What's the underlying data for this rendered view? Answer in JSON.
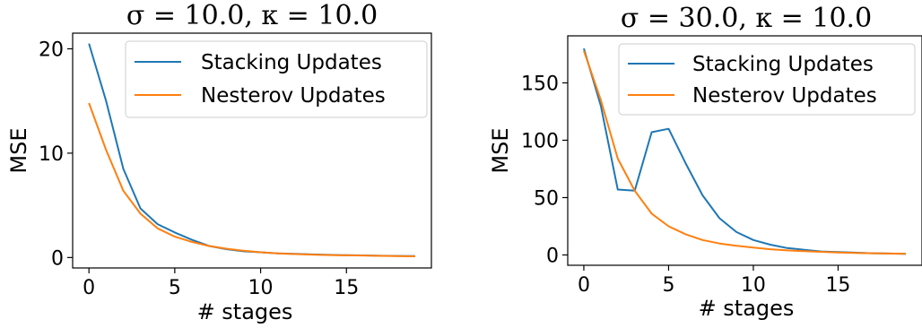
{
  "chart_data": [
    {
      "type": "line",
      "title": "σ = 10.0, κ = 10.0",
      "xlabel": "# stages",
      "ylabel": "MSE",
      "xlim": [
        -0.95,
        19.95
      ],
      "ylim": [
        -1.0,
        21.5
      ],
      "xticks": [
        0,
        5,
        10,
        15
      ],
      "yticks": [
        0,
        10,
        20
      ],
      "legend": "upper-right",
      "grid": false,
      "x": [
        0,
        1,
        2,
        3,
        4,
        5,
        6,
        7,
        8,
        9,
        10,
        11,
        12,
        13,
        14,
        15,
        16,
        17,
        18,
        19
      ],
      "series": [
        {
          "name": "Stacking Updates",
          "color": "#1f77b4",
          "values": [
            20.5,
            15.0,
            8.5,
            4.7,
            3.2,
            2.4,
            1.7,
            1.1,
            0.8,
            0.6,
            0.5,
            0.4,
            0.35,
            0.3,
            0.25,
            0.22,
            0.2,
            0.17,
            0.15,
            0.13
          ]
        },
        {
          "name": "Nesterov Updates",
          "color": "#ff7f0e",
          "values": [
            14.8,
            10.3,
            6.4,
            4.2,
            2.8,
            2.0,
            1.5,
            1.1,
            0.85,
            0.65,
            0.5,
            0.4,
            0.33,
            0.28,
            0.24,
            0.21,
            0.19,
            0.16,
            0.14,
            0.12
          ]
        }
      ]
    },
    {
      "type": "line",
      "title": "σ = 30.0, κ = 10.0",
      "xlabel": "# stages",
      "ylabel": "MSE",
      "xlim": [
        -0.95,
        19.95
      ],
      "ylim": [
        -9.0,
        191.0
      ],
      "xticks": [
        0,
        5,
        10,
        15
      ],
      "yticks": [
        0,
        50,
        100,
        150
      ],
      "legend": "upper-right",
      "grid": false,
      "x": [
        0,
        1,
        2,
        3,
        4,
        5,
        6,
        7,
        8,
        9,
        10,
        11,
        12,
        13,
        14,
        15,
        16,
        17,
        18,
        19
      ],
      "series": [
        {
          "name": "Stacking Updates",
          "color": "#1f77b4",
          "values": [
            180,
            130,
            57,
            56,
            107,
            110,
            80,
            52,
            32,
            20,
            13,
            9,
            6,
            4.5,
            3,
            2.5,
            2,
            1.5,
            1.2,
            1.0
          ]
        },
        {
          "name": "Nesterov Updates",
          "color": "#ff7f0e",
          "values": [
            178,
            135,
            84,
            56,
            36,
            25,
            18,
            13,
            10,
            8,
            6.5,
            5,
            4,
            3.3,
            2.7,
            2.2,
            1.8,
            1.5,
            1.2,
            1.0
          ]
        }
      ]
    }
  ]
}
